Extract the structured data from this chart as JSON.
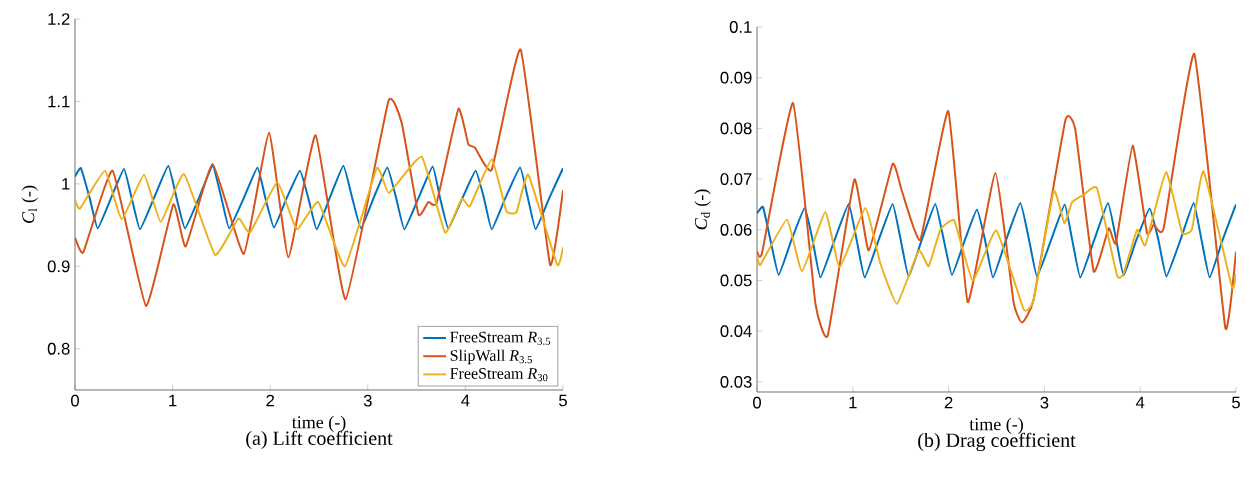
{
  "chart_data": [
    {
      "type": "line",
      "title": "(a) Lift coefficient",
      "xlabel": "time (-)",
      "ylabel": "*C*$_{l}$ (-)",
      "xlim": [
        0,
        5
      ],
      "ylim": [
        0.75,
        1.2
      ],
      "xticks": [
        0,
        1,
        2,
        3,
        4,
        5
      ],
      "yticks": [
        0.8,
        0.9,
        1,
        1.1,
        1.2
      ],
      "grid": false,
      "legend": "bottom right",
      "series": [
        {
          "name": "FreeStream *R*$_{3.5}$",
          "color": "#0072bd",
          "x": [
            0,
            0.061,
            0.15,
            0.232,
            0.37,
            0.502,
            0.58,
            0.666,
            0.81,
            0.956,
            1.04,
            1.127,
            1.27,
            1.41,
            1.5,
            1.58,
            1.73,
            1.87,
            1.95,
            2.039,
            2.17,
            2.305,
            2.39,
            2.476,
            2.61,
            2.75,
            2.84,
            2.93,
            3.06,
            3.2,
            3.29,
            3.374,
            3.52,
            3.665,
            3.74,
            3.825,
            3.97,
            4.105,
            4.19,
            4.269,
            4.41,
            4.56,
            4.64,
            4.72,
            4.86,
            5
          ],
          "values": [
            1.009,
            1.019,
            0.983,
            0.946,
            0.983,
            1.018,
            0.983,
            0.945,
            0.983,
            1.022,
            0.983,
            0.946,
            0.983,
            1.022,
            0.983,
            0.946,
            0.983,
            1.02,
            0.983,
            0.947,
            0.983,
            1.016,
            0.983,
            0.945,
            0.983,
            1.022,
            0.983,
            0.946,
            0.983,
            1.02,
            0.983,
            0.945,
            0.983,
            1.021,
            0.983,
            0.946,
            0.983,
            1.016,
            0.983,
            0.945,
            0.983,
            1.02,
            0.983,
            0.945,
            0.983,
            1.019
          ]
        },
        {
          "name": "SlipWall *R*$_{3.5}$",
          "color": "#d95319",
          "x": [
            0,
            0.085,
            0.386,
            0.727,
            1.007,
            1.134,
            1.41,
            1.73,
            1.988,
            2.186,
            2.466,
            2.773,
            3.21,
            3.347,
            3.518,
            3.62,
            3.705,
            3.928,
            4.03,
            4.098,
            4.27,
            4.566,
            4.867,
            5
          ],
          "values": [
            0.935,
            0.917,
            1.016,
            0.852,
            0.975,
            0.924,
            1.024,
            0.915,
            1.062,
            0.911,
            1.059,
            0.86,
            1.1,
            1.074,
            0.963,
            0.978,
            0.977,
            1.091,
            1.048,
            1.044,
            1.017,
            1.163,
            0.902,
            0.992
          ]
        },
        {
          "name": "FreeStream *R*$_{30}$",
          "color": "#edb120",
          "x": [
            0,
            0.051,
            0.307,
            0.478,
            0.707,
            0.878,
            1.117,
            1.434,
            1.674,
            1.793,
            2.073,
            2.271,
            2.493,
            2.766,
            3.091,
            3.217,
            3.552,
            3.791,
            3.962,
            4.047,
            4.27,
            4.42,
            4.525,
            4.645,
            4.94,
            5
          ],
          "values": [
            0.981,
            0.97,
            1.016,
            0.957,
            1.011,
            0.954,
            1.012,
            0.914,
            0.958,
            0.941,
            1.002,
            0.945,
            0.978,
            0.9,
            1.019,
            0.989,
            1.033,
            0.941,
            0.982,
            0.973,
            1.03,
            0.967,
            0.966,
            1.011,
            0.902,
            0.923
          ]
        }
      ]
    },
    {
      "type": "line",
      "title": "(b) Drag coefficient",
      "xlabel": "time (-)",
      "ylabel": "*C*$_{d}$ (-)",
      "xlim": [
        0,
        5
      ],
      "ylim": [
        0.028,
        0.1
      ],
      "xticks": [
        0,
        1,
        2,
        3,
        4,
        5
      ],
      "yticks": [
        0.03,
        0.04,
        0.05,
        0.06,
        0.07,
        0.08,
        0.09,
        0.1
      ],
      "grid": false,
      "series": [
        {
          "color": "#0072bd",
          "x": [
            0,
            0.063,
            0.14,
            0.226,
            0.36,
            0.498,
            0.58,
            0.661,
            0.81,
            0.957,
            1.04,
            1.124,
            1.27,
            1.416,
            1.5,
            1.583,
            1.72,
            1.861,
            1.95,
            2.035,
            2.17,
            2.296,
            2.38,
            2.463,
            2.6,
            2.749,
            2.84,
            2.923,
            3.07,
            3.212,
            3.29,
            3.375,
            3.52,
            3.664,
            3.75,
            3.827,
            3.96,
            4.099,
            4.19,
            4.273,
            4.42,
            4.558,
            4.64,
            4.725,
            4.86,
            5
          ],
          "values": [
            0.0632,
            0.0645,
            0.058,
            0.0511,
            0.058,
            0.0643,
            0.058,
            0.0506,
            0.058,
            0.0651,
            0.058,
            0.0506,
            0.058,
            0.0651,
            0.058,
            0.0508,
            0.058,
            0.0651,
            0.058,
            0.0511,
            0.058,
            0.064,
            0.058,
            0.0506,
            0.058,
            0.0653,
            0.058,
            0.0508,
            0.058,
            0.065,
            0.058,
            0.0506,
            0.058,
            0.0653,
            0.058,
            0.051,
            0.058,
            0.0642,
            0.058,
            0.0508,
            0.058,
            0.0653,
            0.058,
            0.0506,
            0.058,
            0.065
          ]
        },
        {
          "color": "#d95319",
          "x": [
            0,
            0.052,
            0.376,
            0.609,
            0.738,
            1.016,
            1.166,
            1.416,
            1.513,
            1.705,
            1.997,
            2.199,
            2.488,
            2.68,
            2.766,
            2.888,
            3.219,
            3.323,
            3.514,
            3.671,
            3.747,
            3.921,
            4.071,
            4.141,
            4.245,
            4.565,
            4.889,
            5
          ],
          "values": [
            0.0557,
            0.0554,
            0.085,
            0.0455,
            0.0391,
            0.0699,
            0.0559,
            0.073,
            0.0676,
            0.058,
            0.0834,
            0.0457,
            0.0712,
            0.0455,
            0.0417,
            0.0463,
            0.0816,
            0.0797,
            0.0518,
            0.0603,
            0.0574,
            0.0766,
            0.0593,
            0.061,
            0.0603,
            0.0947,
            0.0406,
            0.0557
          ]
        },
        {
          "color": "#edb120",
          "x": [
            0,
            0.035,
            0.313,
            0.47,
            0.713,
            0.863,
            1.131,
            1.287,
            1.461,
            1.688,
            1.792,
            1.914,
            2.06,
            2.251,
            2.498,
            2.784,
            2.888,
            3.097,
            3.208,
            3.288,
            3.41,
            3.549,
            3.758,
            3.827,
            3.967,
            4.054,
            4.269,
            4.436,
            4.54,
            4.662,
            4.958,
            5
          ],
          "values": [
            0.0551,
            0.0531,
            0.062,
            0.0518,
            0.0635,
            0.0526,
            0.0643,
            0.0534,
            0.0454,
            0.0559,
            0.0528,
            0.06,
            0.0618,
            0.05,
            0.0599,
            0.0443,
            0.0462,
            0.0676,
            0.0613,
            0.0654,
            0.0669,
            0.0682,
            0.051,
            0.0514,
            0.06,
            0.057,
            0.0714,
            0.0595,
            0.0601,
            0.0715,
            0.0487,
            0.0514
          ]
        }
      ]
    }
  ]
}
